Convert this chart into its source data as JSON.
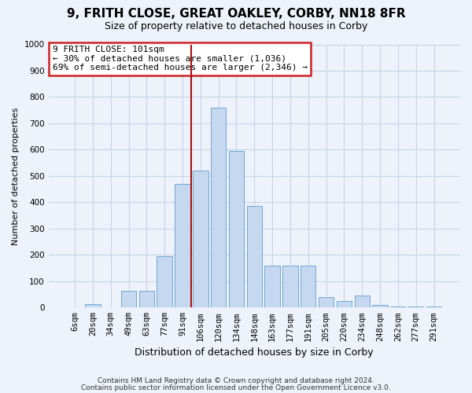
{
  "title1": "9, FRITH CLOSE, GREAT OAKLEY, CORBY, NN18 8FR",
  "title2": "Size of property relative to detached houses in Corby",
  "xlabel": "Distribution of detached houses by size in Corby",
  "ylabel": "Number of detached properties",
  "categories": [
    "6sqm",
    "20sqm",
    "34sqm",
    "49sqm",
    "63sqm",
    "77sqm",
    "91sqm",
    "106sqm",
    "120sqm",
    "134sqm",
    "148sqm",
    "163sqm",
    "177sqm",
    "191sqm",
    "205sqm",
    "220sqm",
    "234sqm",
    "248sqm",
    "262sqm",
    "277sqm",
    "291sqm"
  ],
  "values": [
    0,
    12,
    0,
    65,
    65,
    195,
    470,
    520,
    760,
    595,
    385,
    160,
    160,
    160,
    40,
    25,
    45,
    10,
    5,
    5,
    5
  ],
  "bar_color": "#c5d8f0",
  "bar_edge_color": "#6fa8d0",
  "red_line_index": 7,
  "annotation_text": "9 FRITH CLOSE: 101sqm\n← 30% of detached houses are smaller (1,036)\n69% of semi-detached houses are larger (2,346) →",
  "annotation_box_color": "#ffffff",
  "annotation_box_edge_color": "#cc2222",
  "ylim": [
    0,
    1000
  ],
  "yticks": [
    0,
    100,
    200,
    300,
    400,
    500,
    600,
    700,
    800,
    900,
    1000
  ],
  "footer1": "Contains HM Land Registry data © Crown copyright and database right 2024.",
  "footer2": "Contains public sector information licensed under the Open Government Licence v3.0.",
  "bg_color": "#eef2fa",
  "plot_bg_color": "#eef2fa",
  "grid_color": "#c8d4e8",
  "red_line_color": "#aa1111",
  "title1_fontsize": 11,
  "title2_fontsize": 9,
  "ylabel_fontsize": 8,
  "xlabel_fontsize": 9,
  "tick_fontsize": 7.5,
  "footer_fontsize": 6.5
}
